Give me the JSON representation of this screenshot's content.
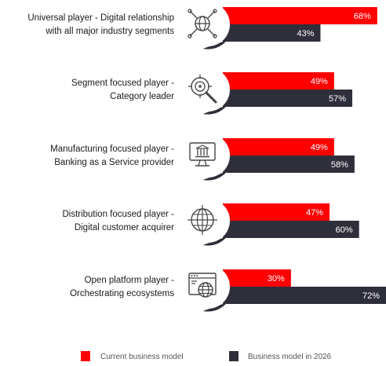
{
  "colors": {
    "current": "#ff0000",
    "future": "#2f2f3b",
    "icon_stroke": "#444444",
    "badge_shadow": "#3a3a3a"
  },
  "chart_data": {
    "type": "bar",
    "orientation": "horizontal",
    "categories": [
      [
        "Universal player - Digital relationship",
        "with all major industry segments"
      ],
      [
        "Segment focused player -",
        "Category leader"
      ],
      [
        "Manufacturing focused player -",
        "Banking as a Service provider"
      ],
      [
        "Distribution focused player -",
        "Digital customer acquirer"
      ],
      [
        "Open platform player -",
        "Orchestrating ecosystems"
      ]
    ],
    "category_icons": [
      "globe-network-icon",
      "target-magnifier-icon",
      "bank-monitor-icon",
      "globe-icon",
      "browser-globe-icon"
    ],
    "series": [
      {
        "name": "Current business model",
        "values": [
          68,
          49,
          49,
          47,
          30
        ],
        "labels": [
          "68%",
          "49%",
          "49%",
          "47%",
          "30%"
        ]
      },
      {
        "name": "Business model in 2026",
        "values": [
          43,
          57,
          58,
          60,
          72
        ],
        "labels": [
          "43%",
          "57%",
          "58%",
          "60%",
          "72%"
        ]
      }
    ],
    "xlim": [
      0,
      100
    ],
    "legend_position": "bottom",
    "grid": false
  }
}
